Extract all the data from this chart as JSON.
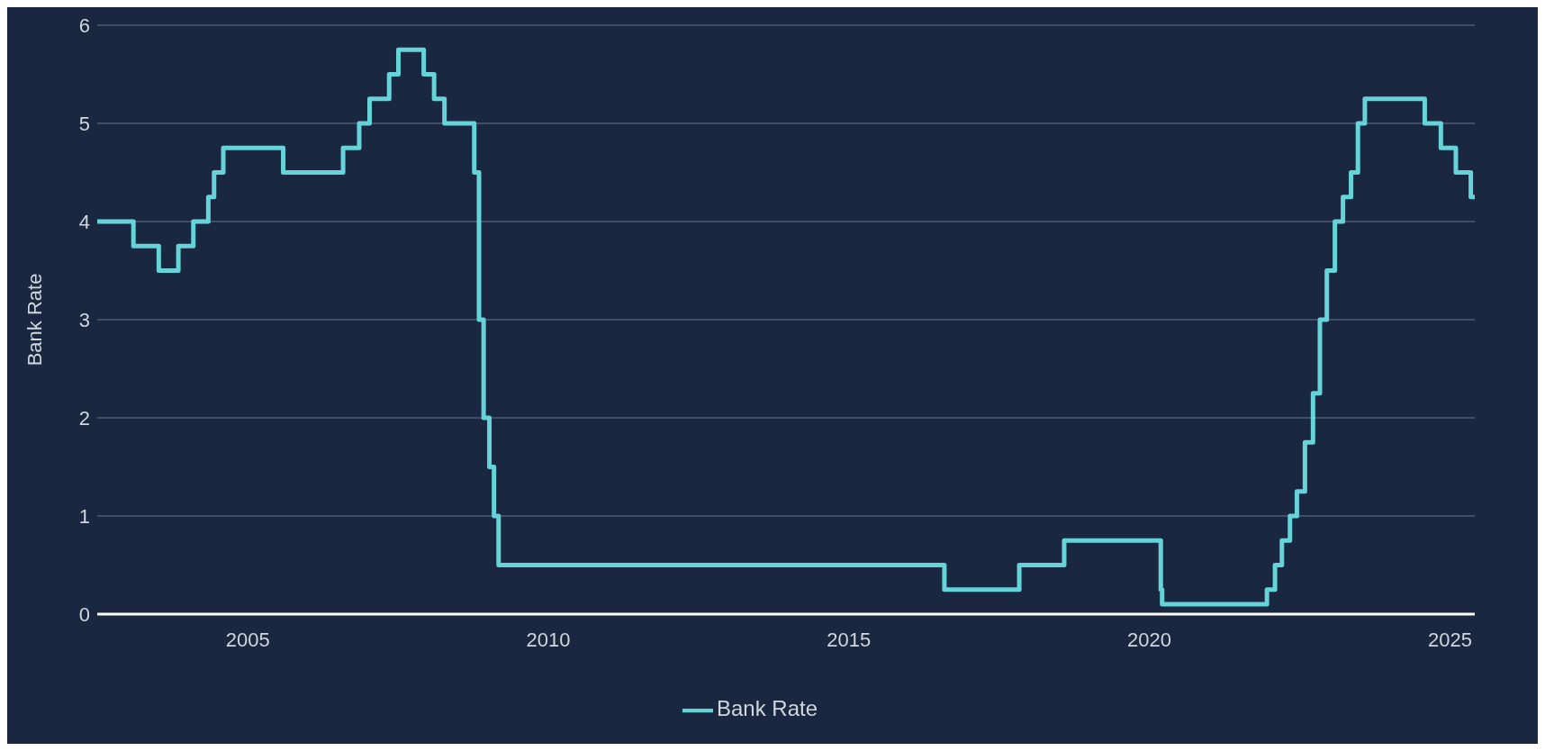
{
  "chart_data": {
    "type": "step",
    "ylabel": "Bank Rate",
    "x": [
      "2002-07-01",
      "2003-02-06",
      "2003-07-10",
      "2003-11-06",
      "2004-02-05",
      "2004-05-06",
      "2004-06-10",
      "2004-08-05",
      "2005-08-04",
      "2006-08-03",
      "2006-11-09",
      "2007-01-11",
      "2007-05-10",
      "2007-07-05",
      "2007-12-06",
      "2008-02-07",
      "2008-04-10",
      "2008-10-08",
      "2008-11-06",
      "2008-12-04",
      "2009-01-08",
      "2009-02-05",
      "2009-03-05",
      "2016-08-04",
      "2017-11-02",
      "2018-08-02",
      "2020-03-11",
      "2020-03-19",
      "2021-12-16",
      "2022-02-03",
      "2022-03-17",
      "2022-05-05",
      "2022-06-16",
      "2022-08-04",
      "2022-09-22",
      "2022-11-03",
      "2022-12-15",
      "2023-02-02",
      "2023-03-23",
      "2023-05-11",
      "2023-06-22",
      "2023-08-03",
      "2024-08-01",
      "2024-11-07",
      "2025-02-06",
      "2025-05-08",
      "2025-06-01"
    ],
    "series": [
      {
        "name": "Bank Rate",
        "color": "#66d3d8",
        "values": [
          4,
          3.75,
          3.5,
          3.75,
          4,
          4.25,
          4.5,
          4.75,
          4.5,
          4.75,
          5,
          5.25,
          5.5,
          5.75,
          5.5,
          5.25,
          5,
          4.5,
          3,
          2,
          1.5,
          1,
          0.5,
          0.25,
          0.5,
          0.75,
          0.25,
          0.1,
          0.25,
          0.5,
          0.75,
          1,
          1.25,
          1.75,
          2.25,
          3,
          3.5,
          4,
          4.25,
          4.5,
          5,
          5.25,
          5,
          4.75,
          4.5,
          4.25,
          4.25
        ]
      }
    ],
    "xlim": [
      "2002-07-01",
      "2025-06-01"
    ],
    "xticks": [
      "2005",
      "2010",
      "2015",
      "2020",
      "2025"
    ],
    "ylim": [
      0,
      6
    ],
    "yticks": [
      0,
      1,
      2,
      3,
      4,
      5,
      6
    ],
    "grid": "y",
    "legend": "bottom",
    "marker": "none",
    "line_style": "solid"
  }
}
